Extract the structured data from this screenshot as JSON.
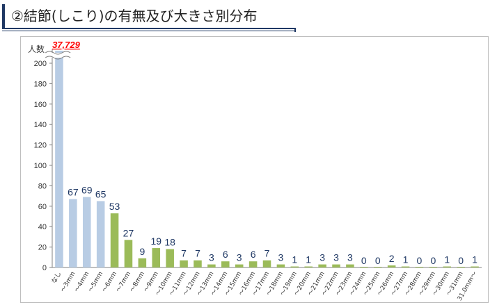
{
  "page": {
    "title": "②結節(しこり)の有無及び大きさ別分布"
  },
  "chart_data": {
    "type": "bar",
    "ylabel": "人数",
    "ylim": [
      0,
      215
    ],
    "yticks": [
      0,
      20,
      40,
      60,
      80,
      100,
      120,
      140,
      160,
      180,
      200
    ],
    "axis_break": true,
    "categories": [
      "なし",
      "～3mm",
      "～4mm",
      "～5mm",
      "～6mm",
      "～7mm",
      "～8mm",
      "～9mm",
      "～10mm",
      "～11mm",
      "～12mm",
      "～13mm",
      "～14mm",
      "～15mm",
      "～16mm",
      "～17mm",
      "～18mm",
      "～19mm",
      "～20mm",
      "～21mm",
      "～22mm",
      "～23mm",
      "～24mm",
      "～25mm",
      "～26mm",
      "～27mm",
      "～28mm",
      "～29mm",
      "～30mm",
      "～31mm",
      "31.0mm～"
    ],
    "values": [
      37729,
      67,
      69,
      65,
      53,
      27,
      9,
      19,
      18,
      7,
      7,
      3,
      6,
      3,
      6,
      7,
      3,
      1,
      1,
      3,
      3,
      3,
      0,
      0,
      2,
      1,
      0,
      0,
      1,
      0,
      1
    ],
    "value_labels": [
      "37,729",
      "67",
      "69",
      "65",
      "53",
      "27",
      "9",
      "19",
      "18",
      "7",
      "7",
      "3",
      "6",
      "3",
      "6",
      "7",
      "3",
      "1",
      "1",
      "3",
      "3",
      "3",
      "0",
      "0",
      "2",
      "1",
      "0",
      "0",
      "1",
      "0",
      "1"
    ],
    "colors": {
      "blue_group": "#B8CCE4",
      "green_group": "#9BBB59",
      "label": "#1F3864",
      "highlight": "#FF0000",
      "grid": "#d9d9d9"
    },
    "blue_indices": [
      0,
      1,
      2,
      3
    ],
    "grid": false
  }
}
